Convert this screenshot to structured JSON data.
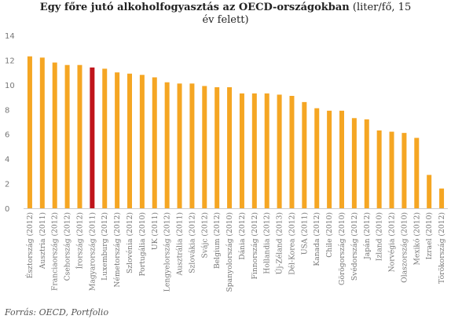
{
  "chart_data": {
    "type": "bar",
    "title_bold": "Egy főre jutó alkoholfogyasztás az OECD-országokban",
    "title_rest": " (liter/fő, 15",
    "title_line2": "év felett)",
    "xlabel": "",
    "ylabel": "",
    "ylim": [
      0,
      14
    ],
    "yticks": [
      0,
      2,
      4,
      6,
      8,
      10,
      12,
      14
    ],
    "grid": false,
    "legend": "none",
    "colors": {
      "default": "#f5a623",
      "highlight": "#c0151b"
    },
    "highlight_index": 5,
    "categories": [
      "Észtország (2012)",
      "Ausztria (2011)",
      "Franciaország (2012)",
      "Csehország (2012)",
      "Írország (2012)",
      "Magyarország (2011)",
      "Luxemburg (2012)",
      "Németország (2012)",
      "Szlovénia (2012)",
      "Portugália (2010)",
      "UK (2011)",
      "Lengyelország (2012)",
      "Ausztrália (2011)",
      "Szlovákia (2012)",
      "Svájc (2012)",
      "Belgium (2012)",
      "Spanyolország (2010)",
      "Dánia (2012)",
      "Finnország (2012)",
      "Hollandia (2012)",
      "Új-Zéland (2013)",
      "Dél-Korea (2012)",
      "USA (2011)",
      "Kanada (2012)",
      "Chile (2010)",
      "Görögország (2010)",
      "Svédország (2012)",
      "Japán (2012)",
      "Izland (2010)",
      "Norvégia (2012)",
      "Olaszország (2010)",
      "Mexikó (2012)",
      "Izrael (2010)",
      "Törökország (2012)"
    ],
    "values": [
      12.3,
      12.2,
      11.8,
      11.6,
      11.6,
      11.4,
      11.3,
      11.0,
      10.9,
      10.8,
      10.6,
      10.2,
      10.1,
      10.1,
      9.9,
      9.8,
      9.8,
      9.3,
      9.3,
      9.3,
      9.2,
      9.1,
      8.6,
      8.1,
      7.9,
      7.9,
      7.3,
      7.2,
      6.3,
      6.2,
      6.1,
      5.7,
      2.7,
      1.6
    ]
  },
  "source": "Forrás: OECD,  Portfolio"
}
